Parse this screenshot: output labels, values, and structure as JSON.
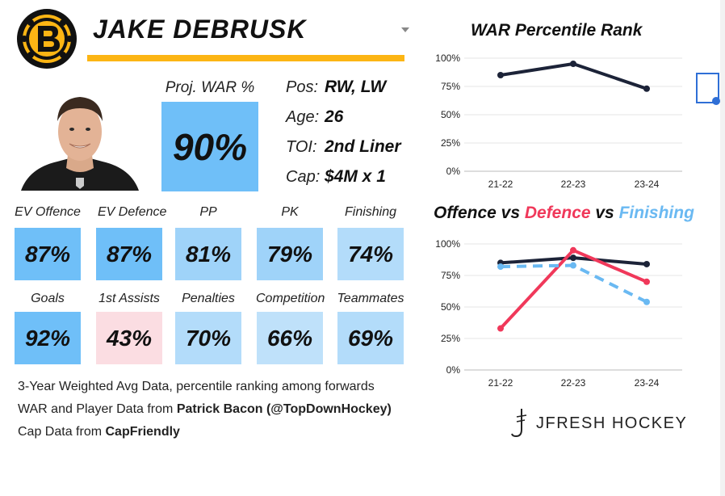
{
  "player": {
    "name": "JAKE DEBRUSK",
    "proj_war_label": "Proj. WAR %",
    "proj_war_value": "90%",
    "info": [
      {
        "key": "Pos:",
        "value": "RW, LW"
      },
      {
        "key": "Age:",
        "value": "26"
      },
      {
        "key": "TOI:",
        "value": "2nd Liner"
      },
      {
        "key": "Cap:",
        "value": "$4M x 1"
      }
    ]
  },
  "stats": [
    {
      "label": "EV Offence",
      "value": "87%",
      "color": "#6fbff8"
    },
    {
      "label": "EV Defence",
      "value": "87%",
      "color": "#6fbff8"
    },
    {
      "label": "PP",
      "value": "81%",
      "color": "#9fd3f9"
    },
    {
      "label": "PK",
      "value": "79%",
      "color": "#9fd3f9"
    },
    {
      "label": "Finishing",
      "value": "74%",
      "color": "#b3dcfa"
    },
    {
      "label": "Goals",
      "value": "92%",
      "color": "#6fbff8"
    },
    {
      "label": "1st Assists",
      "value": "43%",
      "color": "#fbdde2"
    },
    {
      "label": "Penalties",
      "value": "70%",
      "color": "#b3dcfa"
    },
    {
      "label": "Competition",
      "value": "66%",
      "color": "#bfe1fa"
    },
    {
      "label": "Teammates",
      "value": "69%",
      "color": "#b3dcfa"
    }
  ],
  "footnotes": {
    "line1": "3-Year Weighted Avg Data, percentile ranking among forwards",
    "line2_prefix": "WAR and Player Data from ",
    "line2_bold": "Patrick Bacon (@TopDownHockey)",
    "line3_prefix": "Cap Data from ",
    "line3_bold": "CapFriendly"
  },
  "brand": "JFRESH HOCKEY",
  "colors": {
    "gold": "#fcb514",
    "navy": "#1c2338",
    "red": "#f0385a",
    "lightblue": "#6ab9f2"
  },
  "chart_data": [
    {
      "type": "line",
      "title": "WAR Percentile Rank",
      "categories": [
        "21-22",
        "22-23",
        "23-24"
      ],
      "yticks": [
        "0%",
        "25%",
        "50%",
        "75%",
        "100%"
      ],
      "ylim": [
        0,
        100
      ],
      "series": [
        {
          "values": [
            85,
            95,
            73
          ],
          "color": "#1c2338",
          "dash": false
        }
      ]
    },
    {
      "type": "line",
      "title_parts": [
        {
          "text": "Offence",
          "color": "#111111"
        },
        {
          "text": " vs ",
          "color": "#111111"
        },
        {
          "text": "Defence",
          "color": "#f0385a"
        },
        {
          "text": " vs ",
          "color": "#111111"
        },
        {
          "text": "Finishing",
          "color": "#6ab9f2"
        }
      ],
      "categories": [
        "21-22",
        "22-23",
        "23-24"
      ],
      "yticks": [
        "0%",
        "25%",
        "50%",
        "75%",
        "100%"
      ],
      "ylim": [
        0,
        100
      ],
      "series": [
        {
          "name": "Offence",
          "values": [
            85,
            89,
            84
          ],
          "color": "#1c2338",
          "dash": false
        },
        {
          "name": "Defence",
          "values": [
            33,
            95,
            70
          ],
          "color": "#f0385a",
          "dash": false
        },
        {
          "name": "Finishing",
          "values": [
            82,
            83,
            54
          ],
          "color": "#6ab9f2",
          "dash": true
        }
      ]
    }
  ]
}
